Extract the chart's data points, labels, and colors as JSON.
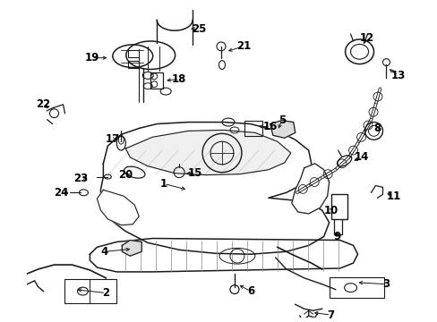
{
  "background_color": "#ffffff",
  "text_color": "#000000",
  "figure_width": 4.89,
  "figure_height": 3.6,
  "dpi": 100,
  "line_color": "#1a1a1a",
  "font_size": 8.5
}
